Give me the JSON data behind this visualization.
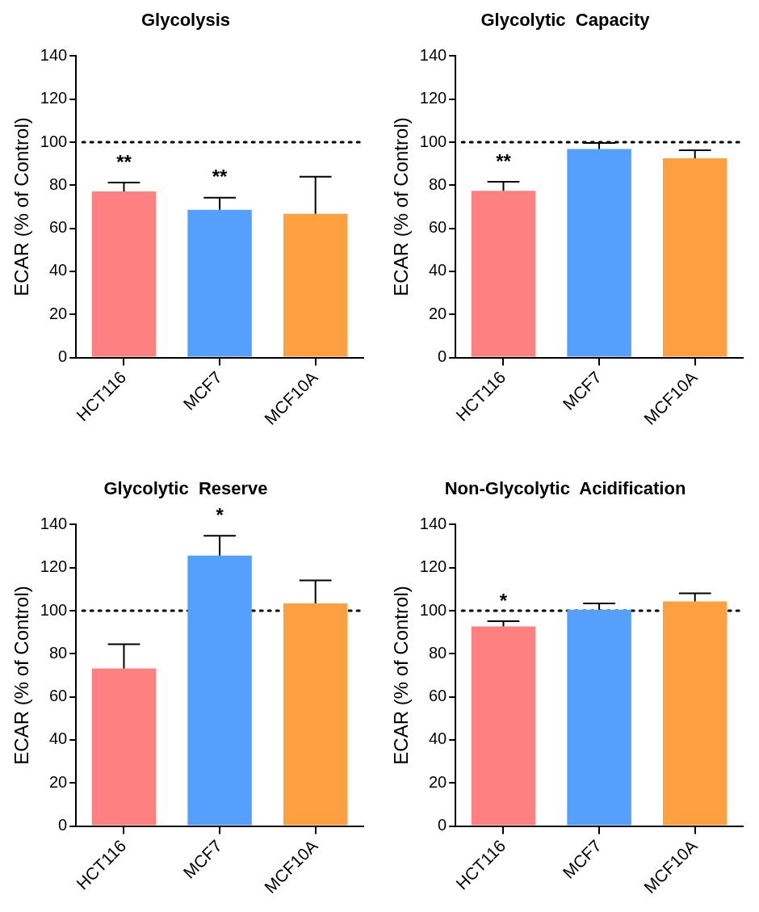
{
  "chart_data": [
    {
      "type": "bar",
      "title": "Glycolysis",
      "ylabel": "ECAR (% of Control)",
      "categories": [
        "HCT116",
        "MCF7",
        "MCF10A"
      ],
      "values": [
        77.1,
        68.6,
        66.7
      ],
      "colors": [
        "#ff8080",
        "#55a0fc",
        "#ffa040"
      ],
      "errors": [
        [
          77.1,
          81.3
        ],
        [
          68.6,
          74.2
        ],
        [
          66.7,
          84
        ]
      ],
      "ylim": [
        0,
        140
      ],
      "yticks": [
        0,
        20,
        40,
        60,
        80,
        100,
        120,
        140
      ],
      "grid": false,
      "legend": false,
      "ref_lines": [
        {
          "axis": "y",
          "value": 100,
          "line_style": "dotted",
          "color": "#000000"
        }
      ],
      "annotations": [
        {
          "text": "**",
          "x": "HCT116",
          "y": 81.3
        },
        {
          "text": "**",
          "x": "MCF7",
          "y": 74.2
        }
      ]
    },
    {
      "type": "bar",
      "title": "Glycolytic  Capacity",
      "ylabel": "ECAR (% of Control)",
      "categories": [
        "HCT116",
        "MCF7",
        "MCF10A"
      ],
      "values": [
        77.4,
        96.8,
        92.5
      ],
      "colors": [
        "#ff8080",
        "#55a0fc",
        "#ffa040"
      ],
      "errors": [
        [
          77.4,
          81.6
        ],
        [
          96.8,
          99.6
        ],
        [
          92.5,
          96.3
        ]
      ],
      "ylim": [
        0,
        140
      ],
      "yticks": [
        0,
        20,
        40,
        60,
        80,
        100,
        120,
        140
      ],
      "grid": false,
      "legend": false,
      "ref_lines": [
        {
          "axis": "y",
          "value": 100,
          "line_style": "dotted",
          "color": "#000000"
        }
      ],
      "annotations": [
        {
          "text": "**",
          "x": "HCT116",
          "y": 81.6
        }
      ]
    },
    {
      "type": "bar",
      "title": "Glycolytic  Reserve",
      "ylabel": "ECAR (% of Control)",
      "categories": [
        "HCT116",
        "MCF7",
        "MCF10A"
      ],
      "values": [
        73.2,
        125.6,
        103.4
      ],
      "colors": [
        "#ff8080",
        "#55a0fc",
        "#ffa040"
      ],
      "errors": [
        [
          73.2,
          84.4
        ],
        [
          125.6,
          134.8
        ],
        [
          103.4,
          114.1
        ]
      ],
      "ylim": [
        0,
        140
      ],
      "yticks": [
        0,
        20,
        40,
        60,
        80,
        100,
        120,
        140
      ],
      "grid": false,
      "legend": false,
      "ref_lines": [
        {
          "axis": "y",
          "value": 100,
          "line_style": "dotted",
          "color": "#000000"
        }
      ],
      "annotations": [
        {
          "text": "*",
          "x": "MCF7",
          "y": 134.8
        }
      ]
    },
    {
      "type": "bar",
      "title": "Non-Glycolytic  Acidification",
      "ylabel": "ECAR (% of Control)",
      "categories": [
        "HCT116",
        "MCF7",
        "MCF10A"
      ],
      "values": [
        92.7,
        100.5,
        104.3
      ],
      "colors": [
        "#ff8080",
        "#55a0fc",
        "#ffa040"
      ],
      "errors": [
        [
          92.7,
          95.1
        ],
        [
          100.5,
          103.4
        ],
        [
          104.3,
          108.1
        ]
      ],
      "ylim": [
        0,
        140
      ],
      "yticks": [
        0,
        20,
        40,
        60,
        80,
        100,
        120,
        140
      ],
      "grid": false,
      "legend": false,
      "ref_lines": [
        {
          "axis": "y",
          "value": 100,
          "line_style": "dotted",
          "color": "#000000"
        }
      ],
      "annotations": [
        {
          "text": "*",
          "x": "HCT116",
          "y": 95.1
        }
      ]
    }
  ]
}
